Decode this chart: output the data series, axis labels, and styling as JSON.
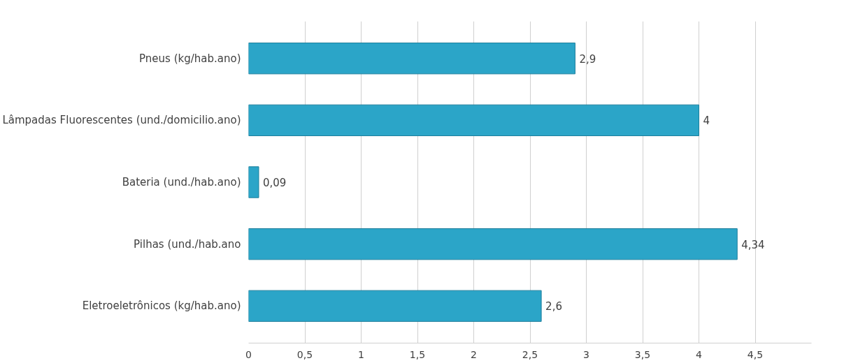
{
  "chart_data": {
    "type": "bar",
    "orientation": "horizontal",
    "categories": [
      "Pneus (kg/hab.ano)",
      "Lâmpadas Fluorescentes (und./domicilio.ano)",
      "Bateria (und./hab.ano)",
      "Pilhas (und./hab.ano",
      "Eletroeletrônicos (kg/hab.ano)"
    ],
    "values": [
      2.9,
      4,
      0.09,
      4.34,
      2.6
    ],
    "value_labels": [
      "2,9",
      "4",
      "0,09",
      "4,34",
      "2,6"
    ],
    "color": "#2ba5c8",
    "xlim": [
      0,
      5
    ],
    "xticks": [
      0,
      {
        "value": 0.5,
        "label": "0,5"
      },
      1,
      {
        "value": 1.5,
        "label": "1,5"
      },
      2,
      {
        "value": 2.5,
        "label": "2,5"
      },
      3,
      {
        "value": 3.5,
        "label": "3,5"
      },
      4,
      {
        "value": 4.5,
        "label": "4,5"
      }
    ],
    "grid": "x"
  }
}
